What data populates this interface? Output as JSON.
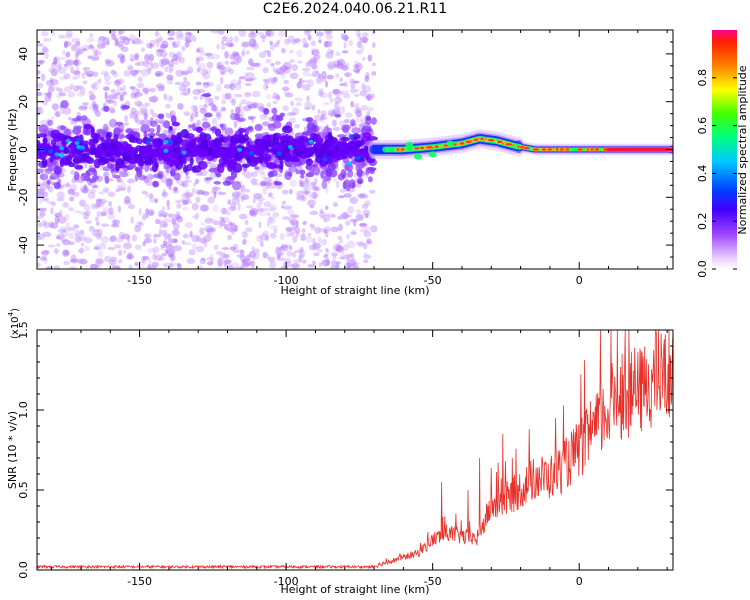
{
  "title": "C2E6.2024.040.06.21.R11",
  "colors": {
    "snr_line": "#e8302a",
    "spectrogram_low": "#6a00ff",
    "spectrogram_mid": "#00ff40",
    "spectrogram_high": "#ff2050"
  },
  "chart_data": [
    {
      "type": "heatmap",
      "name": "spectrogram",
      "xlabel": "Height of straight line (km)",
      "ylabel": "Frequency (Hz)",
      "xlim": [
        -185,
        32
      ],
      "ylim": [
        -50,
        50
      ],
      "x_ticks": [
        -150,
        -100,
        -50,
        0
      ],
      "x_tick_labels": [
        "-150",
        "-100",
        "-50",
        "0"
      ],
      "y_ticks": [
        -40,
        -20,
        0,
        20,
        40
      ],
      "y_tick_labels": [
        "-40",
        "-20",
        "0",
        "20",
        "40"
      ],
      "colorbar": {
        "label": "Normalized spectral amplitude",
        "range": [
          0,
          1
        ],
        "ticks": [
          0,
          0.2,
          0.4,
          0.6,
          0.8
        ],
        "tick_labels": [
          "0.0",
          "0.2",
          "0.4",
          "0.6",
          "0.8"
        ],
        "colormap": "rainbow-magenta"
      },
      "regions": [
        {
          "x_range": [
            -185,
            -70
          ],
          "freq_spread_hz": 50,
          "core_band_hz": [
            -12,
            12
          ],
          "amplitude": 0.15
        },
        {
          "x_range": [
            -70,
            -20
          ],
          "center_freq_hz": [
            0,
            1.5,
            3,
            5,
            3,
            1
          ],
          "core_band_hz": 5,
          "amplitude": 0.55
        },
        {
          "x_range": [
            -20,
            32
          ],
          "center_freq_hz": 0,
          "core_band_hz": 2,
          "amplitude": 0.9
        }
      ],
      "ridge_center_km": [
        -70,
        -60,
        -50,
        -40,
        -34,
        -28,
        -22,
        -15,
        0,
        32
      ],
      "ridge_center_hz": [
        0,
        0,
        1,
        2.5,
        4.5,
        3.5,
        1.5,
        0,
        0,
        0
      ]
    },
    {
      "type": "line",
      "name": "snr",
      "xlabel": "Height of straight line (km)",
      "ylabel": "SNR (10 * v/v)",
      "y_exponent_label": "(x10",
      "y_exponent_sup": "4",
      "y_exponent_close": ")",
      "xlim": [
        -185,
        32
      ],
      "ylim": [
        0,
        1.5
      ],
      "x_ticks": [
        -150,
        -100,
        -50,
        0
      ],
      "x_tick_labels": [
        "-150",
        "-100",
        "-50",
        "0"
      ],
      "y_ticks": [
        0,
        0.5,
        1.0,
        1.5
      ],
      "y_tick_labels": [
        "0.0",
        "0.5",
        "1.0",
        "1.5"
      ],
      "series": [
        {
          "envelope_x": [
            -185,
            -70,
            -65,
            -55,
            -50,
            -45,
            -40,
            -35,
            -30,
            -25,
            -20,
            -15,
            -10,
            -5,
            0,
            5,
            10,
            13,
            15,
            20,
            25,
            32
          ],
          "envelope_y": [
            0.02,
            0.02,
            0.05,
            0.1,
            0.18,
            0.22,
            0.2,
            0.18,
            0.38,
            0.42,
            0.48,
            0.55,
            0.55,
            0.62,
            0.72,
            0.82,
            0.95,
            1.05,
            1.02,
            1.05,
            1.12,
            1.18
          ],
          "spikes_x": [
            -47,
            -38,
            -34,
            -26,
            -17,
            -8,
            7,
            13,
            15
          ],
          "spikes_y": [
            0.55,
            0.5,
            0.7,
            0.85,
            0.88,
            0.95,
            1.08,
            1.5,
            1.22
          ]
        }
      ]
    }
  ]
}
